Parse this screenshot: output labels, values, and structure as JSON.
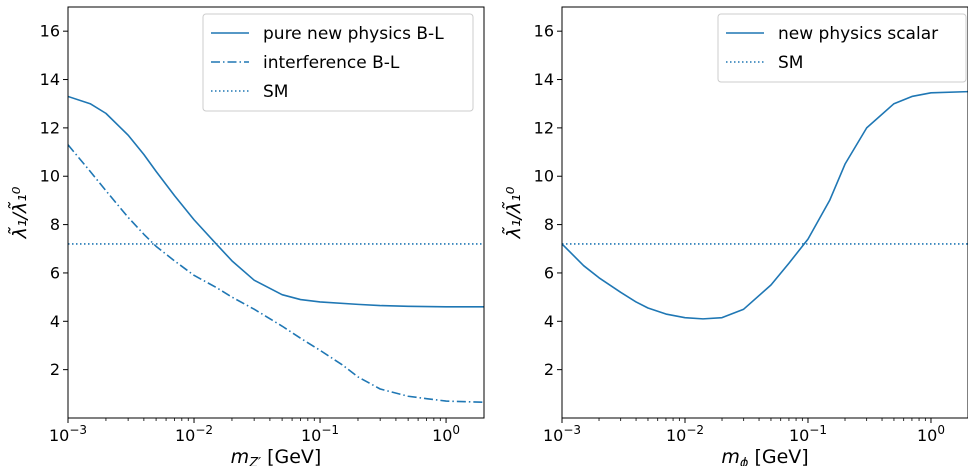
{
  "chart_data": [
    {
      "type": "line",
      "x_scale": "log",
      "xlim": [
        0.001,
        2.0
      ],
      "ylim": [
        0,
        17
      ],
      "xlabel_main": "m",
      "xlabel_sub": "Z′",
      "xlabel_unit": " [GeV]",
      "ylabel": "λ̃₁/λ̃₁⁰",
      "x_ticks": [
        {
          "value": 0.001,
          "base": "10",
          "exp": "−3"
        },
        {
          "value": 0.01,
          "base": "10",
          "exp": "−2"
        },
        {
          "value": 0.1,
          "base": "10",
          "exp": "−1"
        },
        {
          "value": 1,
          "base": "10",
          "exp": "0"
        }
      ],
      "y_ticks": [
        2,
        4,
        6,
        8,
        10,
        12,
        14,
        16
      ],
      "legend_position": "top-right",
      "grid": false,
      "series": [
        {
          "name": "pure new physics B-L",
          "style": "solid",
          "color": "#1f77b4",
          "x": [
            0.001,
            0.0015,
            0.002,
            0.003,
            0.004,
            0.005,
            0.007,
            0.01,
            0.015,
            0.02,
            0.03,
            0.05,
            0.07,
            0.1,
            0.2,
            0.3,
            0.5,
            1.0,
            2.0
          ],
          "y": [
            13.3,
            13.0,
            12.6,
            11.7,
            10.9,
            10.2,
            9.2,
            8.2,
            7.2,
            6.5,
            5.7,
            5.1,
            4.9,
            4.8,
            4.7,
            4.65,
            4.62,
            4.6,
            4.6
          ]
        },
        {
          "name": "interference B-L",
          "style": "dashdot",
          "color": "#1f77b4",
          "x": [
            0.001,
            0.0015,
            0.002,
            0.003,
            0.004,
            0.005,
            0.007,
            0.01,
            0.015,
            0.02,
            0.03,
            0.05,
            0.07,
            0.1,
            0.15,
            0.2,
            0.3,
            0.5,
            0.7,
            1.0,
            2.0
          ],
          "y": [
            11.3,
            10.2,
            9.4,
            8.3,
            7.6,
            7.1,
            6.5,
            5.9,
            5.4,
            5.0,
            4.5,
            3.8,
            3.3,
            2.8,
            2.2,
            1.7,
            1.2,
            0.9,
            0.8,
            0.7,
            0.65
          ]
        },
        {
          "name": "SM",
          "style": "dotted",
          "color": "#1f77b4",
          "x": [
            0.001,
            2.0
          ],
          "y": [
            7.2,
            7.2
          ]
        }
      ]
    },
    {
      "type": "line",
      "x_scale": "log",
      "xlim": [
        0.001,
        2.0
      ],
      "ylim": [
        0,
        17
      ],
      "xlabel_main": "m",
      "xlabel_sub": "ϕ",
      "xlabel_unit": " [GeV]",
      "ylabel": "λ̃₁/λ̃₁⁰",
      "x_ticks": [
        {
          "value": 0.001,
          "base": "10",
          "exp": "−3"
        },
        {
          "value": 0.01,
          "base": "10",
          "exp": "−2"
        },
        {
          "value": 0.1,
          "base": "10",
          "exp": "−1"
        },
        {
          "value": 1,
          "base": "10",
          "exp": "0"
        }
      ],
      "y_ticks": [
        2,
        4,
        6,
        8,
        10,
        12,
        14,
        16
      ],
      "legend_position": "top-right",
      "grid": false,
      "series": [
        {
          "name": "new physics scalar",
          "style": "solid",
          "color": "#1f77b4",
          "x": [
            0.001,
            0.0015,
            0.002,
            0.003,
            0.004,
            0.005,
            0.007,
            0.01,
            0.014,
            0.02,
            0.03,
            0.05,
            0.07,
            0.1,
            0.15,
            0.2,
            0.3,
            0.5,
            0.7,
            1.0,
            2.0
          ],
          "y": [
            7.2,
            6.3,
            5.8,
            5.2,
            4.8,
            4.55,
            4.3,
            4.15,
            4.1,
            4.15,
            4.5,
            5.5,
            6.4,
            7.4,
            9.0,
            10.5,
            12.0,
            13.0,
            13.3,
            13.45,
            13.5
          ]
        },
        {
          "name": "SM",
          "style": "dotted",
          "color": "#1f77b4",
          "x": [
            0.001,
            2.0
          ],
          "y": [
            7.2,
            7.2
          ]
        }
      ]
    }
  ]
}
